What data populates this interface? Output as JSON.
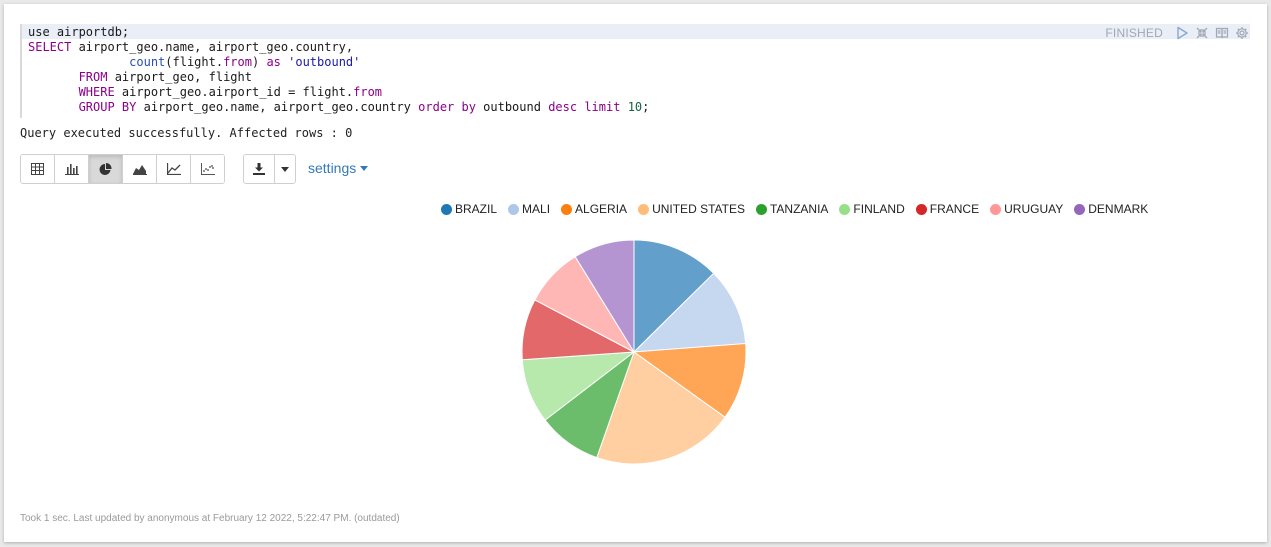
{
  "editor": {
    "lines": [
      [
        {
          "t": "use airportdb;"
        }
      ],
      [
        {
          "t": "SELECT",
          "c": "kw"
        },
        {
          "t": " airport_geo.name, airport_geo.country,"
        }
      ],
      [
        {
          "t": "              "
        },
        {
          "t": "count",
          "c": "fn"
        },
        {
          "t": "(flight."
        },
        {
          "t": "from",
          "c": "kw"
        },
        {
          "t": ") "
        },
        {
          "t": "as",
          "c": "kw"
        },
        {
          "t": " "
        },
        {
          "t": "'outbound'",
          "c": "str"
        }
      ],
      [
        {
          "t": "       "
        },
        {
          "t": "FROM",
          "c": "kw"
        },
        {
          "t": " airport_geo, flight"
        }
      ],
      [
        {
          "t": "       "
        },
        {
          "t": "WHERE",
          "c": "kw"
        },
        {
          "t": " airport_geo.airport_id = flight."
        },
        {
          "t": "from",
          "c": "kw"
        }
      ],
      [
        {
          "t": "       "
        },
        {
          "t": "GROUP BY",
          "c": "kw"
        },
        {
          "t": " airport_geo.name, airport_geo.country "
        },
        {
          "t": "order by",
          "c": "kw"
        },
        {
          "t": " outbound "
        },
        {
          "t": "desc",
          "c": "kw"
        },
        {
          "t": " "
        },
        {
          "t": "limit",
          "c": "kw"
        },
        {
          "t": " "
        },
        {
          "t": "10",
          "c": "num"
        },
        {
          "t": ";"
        }
      ]
    ]
  },
  "status": {
    "label": "FINISHED",
    "icons": [
      "run-icon",
      "expand-icon",
      "book-icon",
      "gear-icon"
    ]
  },
  "result": {
    "message": "Query executed successfully. Affected rows : 0"
  },
  "toolbar": {
    "viz_buttons": [
      "table-icon",
      "bar-chart-icon",
      "pie-chart-icon",
      "area-chart-icon",
      "line-chart-icon",
      "scatter-chart-icon"
    ],
    "active_viz": "pie-chart-icon",
    "download_icon": "download-icon",
    "settings_label": "settings"
  },
  "chart_data": {
    "type": "pie",
    "categories": [
      "BRAZIL",
      "MALI",
      "ALGERIA",
      "UNITED STATES",
      "TANZANIA",
      "FINLAND",
      "FRANCE",
      "URUGUAY",
      "DENMARK"
    ],
    "values": [
      12.6,
      11.2,
      11.1,
      20.5,
      9.2,
      9.3,
      8.8,
      8.5,
      8.8
    ],
    "colors": [
      "#1f77b4",
      "#aec7e8",
      "#ff7f0e",
      "#ffbb78",
      "#2ca02c",
      "#98df8a",
      "#d62728",
      "#ff9896",
      "#9467bd"
    ],
    "legend_position": "top"
  },
  "footer": {
    "text": "Took 1 sec. Last updated by anonymous at February 12 2022, 5:22:47 PM. (outdated)"
  }
}
